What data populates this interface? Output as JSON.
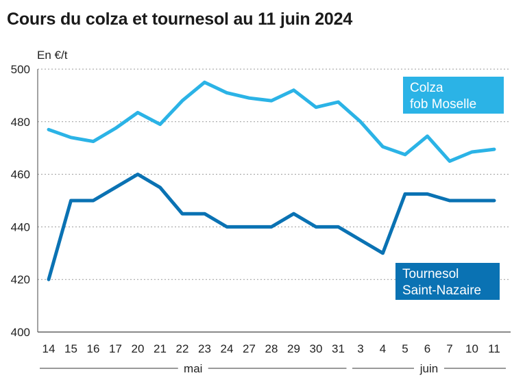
{
  "chart_data": {
    "type": "line",
    "title": "Cours du colza et tournesol au 11 juin 2024",
    "ylabel": "En €/t",
    "ylim": [
      400,
      500
    ],
    "yticks": [
      400,
      420,
      440,
      460,
      480,
      500
    ],
    "grid": true,
    "categories": [
      "14",
      "15",
      "16",
      "17",
      "20",
      "21",
      "22",
      "23",
      "24",
      "27",
      "28",
      "29",
      "30",
      "31",
      "3",
      "4",
      "5",
      "6",
      "7",
      "10",
      "11"
    ],
    "groups": [
      {
        "label": "mai",
        "from": 0,
        "to": 13
      },
      {
        "label": "juin",
        "from": 14,
        "to": 20
      }
    ],
    "series": [
      {
        "name_lines": [
          "Colza",
          "fob Moselle"
        ],
        "color": "#2bb3e6",
        "values": [
          477,
          474,
          472.5,
          477.5,
          483.5,
          479,
          488,
          495,
          491,
          489,
          488,
          492,
          485.5,
          487.5,
          480,
          470.5,
          467.5,
          474.5,
          465,
          468.5,
          469.5
        ]
      },
      {
        "name_lines": [
          "Tournesol",
          "Saint-Nazaire"
        ],
        "color": "#0a72b3",
        "values": [
          420,
          450,
          450,
          455,
          460,
          455,
          445,
          445,
          440,
          440,
          440,
          445,
          440,
          440,
          435,
          430,
          452.5,
          452.5,
          450,
          450,
          450
        ]
      }
    ]
  }
}
